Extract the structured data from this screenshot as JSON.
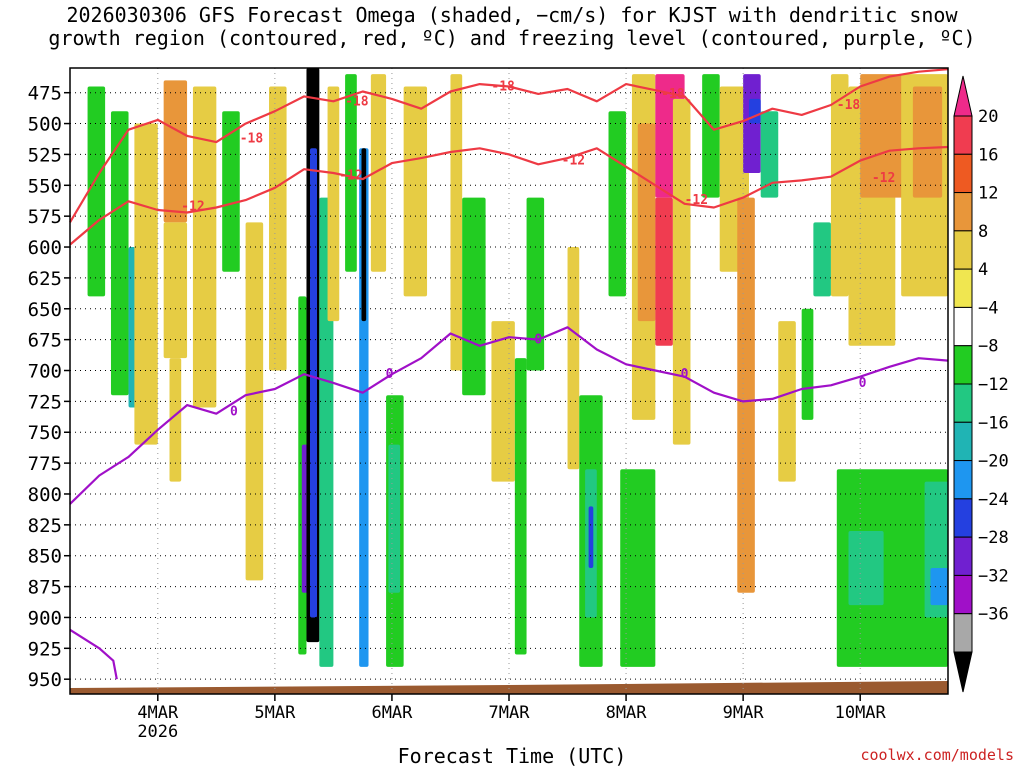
{
  "header": {
    "title_line1": "2026030306 GFS Forecast Omega (shaded, −cm/s) for KJST with dendritic snow",
    "title_line2": "growth region (contoured, red, ºC) and freezing level (contoured, purple, ºC)"
  },
  "footer": {
    "xlabel": "Forecast Time (UTC)",
    "credit": "coolwx.com/models"
  },
  "chart_data": {
    "type": "heatmap",
    "x_unit": "forecast time (UTC), March 2026",
    "xlim_day": [
      3.25,
      10.75
    ],
    "x_ticks": [
      {
        "day": 4,
        "label": "4MAR",
        "sublabel": "2026"
      },
      {
        "day": 5,
        "label": "5MAR"
      },
      {
        "day": 6,
        "label": "6MAR"
      },
      {
        "day": 7,
        "label": "7MAR"
      },
      {
        "day": 8,
        "label": "8MAR"
      },
      {
        "day": 9,
        "label": "9MAR"
      },
      {
        "day": 10,
        "label": "10MAR"
      }
    ],
    "y_unit": "pressure (hPa)",
    "ylim": [
      962,
      455
    ],
    "y_ticks": [
      475,
      500,
      525,
      550,
      575,
      600,
      625,
      650,
      675,
      700,
      725,
      750,
      775,
      800,
      825,
      850,
      875,
      900,
      925,
      950
    ],
    "grid": "dotted",
    "colorbar": {
      "labels": [
        "20",
        "16",
        "12",
        "8",
        "4",
        "−4",
        "−8",
        "−12",
        "−16",
        "−20",
        "−24",
        "−28",
        "−32",
        "−36"
      ],
      "bins": [
        {
          "range": "16 to 20",
          "color": "#f03c50"
        },
        {
          "range": "12 to 16",
          "color": "#ee5a22"
        },
        {
          "range": "8 to 12",
          "color": "#e8963a"
        },
        {
          "range": "4 to 8",
          "color": "#e6cc44"
        },
        {
          "range": "0 to 4",
          "color": "#f0e650"
        },
        {
          "range": "-4 to 0",
          "color": "#ffffff"
        },
        {
          "range": "-8 to -4",
          "color": "#22cc22"
        },
        {
          "range": "-12 to -8",
          "color": "#22c882"
        },
        {
          "range": "-16 to -12",
          "color": "#20b4b4"
        },
        {
          "range": "-20 to -16",
          "color": "#1e96f0"
        },
        {
          "range": "-24 to -20",
          "color": "#2440e0"
        },
        {
          "range": "-28 to -24",
          "color": "#7020d0"
        },
        {
          "range": "-32 to -28",
          "color": "#a010c8"
        },
        {
          "range": "-36 to -32",
          "color": "#a8a8a8"
        }
      ],
      "top_arrow_color": "#ee2a8a",
      "bottom_arrow_color": "#000000"
    },
    "terrain_color": "#9a5a30",
    "omega_features": [
      {
        "day": [
          3.4,
          3.55
        ],
        "p": [
          470,
          640
        ],
        "color": "#22cc22"
      },
      {
        "day": [
          3.6,
          3.75
        ],
        "p": [
          490,
          720
        ],
        "color": "#22cc22"
      },
      {
        "day": [
          3.75,
          3.85
        ],
        "p": [
          600,
          730
        ],
        "color": "#20b4b4"
      },
      {
        "day": [
          3.8,
          4.0
        ],
        "p": [
          500,
          760
        ],
        "color": "#e6cc44"
      },
      {
        "day": [
          4.05,
          4.25
        ],
        "p": [
          465,
          580
        ],
        "color": "#e8963a"
      },
      {
        "day": [
          4.05,
          4.25
        ],
        "p": [
          580,
          690
        ],
        "color": "#e6cc44"
      },
      {
        "day": [
          4.1,
          4.2
        ],
        "p": [
          690,
          790
        ],
        "color": "#e6cc44"
      },
      {
        "day": [
          4.3,
          4.5
        ],
        "p": [
          470,
          730
        ],
        "color": "#e6cc44"
      },
      {
        "day": [
          4.55,
          4.7
        ],
        "p": [
          490,
          620
        ],
        "color": "#22cc22"
      },
      {
        "day": [
          4.75,
          4.9
        ],
        "p": [
          580,
          870
        ],
        "color": "#e6cc44"
      },
      {
        "day": [
          4.95,
          5.1
        ],
        "p": [
          470,
          700
        ],
        "color": "#e6cc44"
      },
      {
        "day": [
          5.2,
          5.27
        ],
        "p": [
          640,
          930
        ],
        "color": "#22cc22"
      },
      {
        "day": [
          5.23,
          5.28
        ],
        "p": [
          760,
          880
        ],
        "color": "#7020d0"
      },
      {
        "day": [
          5.27,
          5.38
        ],
        "p": [
          455,
          920
        ],
        "color": "#000000"
      },
      {
        "day": [
          5.3,
          5.36
        ],
        "p": [
          520,
          900
        ],
        "color": "#2440e0"
      },
      {
        "day": [
          5.38,
          5.5
        ],
        "p": [
          560,
          940
        ],
        "color": "#22c882"
      },
      {
        "day": [
          5.45,
          5.55
        ],
        "p": [
          470,
          660
        ],
        "color": "#e6cc44"
      },
      {
        "day": [
          5.6,
          5.7
        ],
        "p": [
          460,
          620
        ],
        "color": "#22cc22"
      },
      {
        "day": [
          5.72,
          5.8
        ],
        "p": [
          520,
          940
        ],
        "color": "#1e96f0"
      },
      {
        "day": [
          5.74,
          5.78
        ],
        "p": [
          520,
          660
        ],
        "color": "#000000"
      },
      {
        "day": [
          5.82,
          5.95
        ],
        "p": [
          460,
          620
        ],
        "color": "#e6cc44"
      },
      {
        "day": [
          5.95,
          6.1
        ],
        "p": [
          720,
          940
        ],
        "color": "#22cc22"
      },
      {
        "day": [
          5.97,
          6.07
        ],
        "p": [
          760,
          880
        ],
        "color": "#22c882"
      },
      {
        "day": [
          6.1,
          6.3
        ],
        "p": [
          470,
          640
        ],
        "color": "#e6cc44"
      },
      {
        "day": [
          6.5,
          6.6
        ],
        "p": [
          460,
          700
        ],
        "color": "#e6cc44"
      },
      {
        "day": [
          6.6,
          6.8
        ],
        "p": [
          560,
          720
        ],
        "color": "#22cc22"
      },
      {
        "day": [
          6.85,
          7.05
        ],
        "p": [
          660,
          790
        ],
        "color": "#e6cc44"
      },
      {
        "day": [
          7.05,
          7.15
        ],
        "p": [
          690,
          930
        ],
        "color": "#22cc22"
      },
      {
        "day": [
          7.15,
          7.3
        ],
        "p": [
          560,
          700
        ],
        "color": "#22cc22"
      },
      {
        "day": [
          7.5,
          7.6
        ],
        "p": [
          600,
          780
        ],
        "color": "#e6cc44"
      },
      {
        "day": [
          7.6,
          7.8
        ],
        "p": [
          720,
          940
        ],
        "color": "#22cc22"
      },
      {
        "day": [
          7.65,
          7.75
        ],
        "p": [
          780,
          900
        ],
        "color": "#22c882"
      },
      {
        "day": [
          7.68,
          7.72
        ],
        "p": [
          810,
          860
        ],
        "color": "#2440e0"
      },
      {
        "day": [
          7.85,
          8.0
        ],
        "p": [
          490,
          640
        ],
        "color": "#22cc22"
      },
      {
        "day": [
          7.95,
          8.25
        ],
        "p": [
          780,
          940
        ],
        "color": "#22cc22"
      },
      {
        "day": [
          8.05,
          8.25
        ],
        "p": [
          460,
          740
        ],
        "color": "#e6cc44"
      },
      {
        "day": [
          8.1,
          8.25
        ],
        "p": [
          500,
          660
        ],
        "color": "#e8963a"
      },
      {
        "day": [
          8.25,
          8.5
        ],
        "p": [
          460,
          560
        ],
        "color": "#ee2a8a"
      },
      {
        "day": [
          8.25,
          8.4
        ],
        "p": [
          560,
          680
        ],
        "color": "#f03c50"
      },
      {
        "day": [
          8.4,
          8.55
        ],
        "p": [
          480,
          760
        ],
        "color": "#e6cc44"
      },
      {
        "day": [
          8.65,
          8.8
        ],
        "p": [
          460,
          560
        ],
        "color": "#22cc22"
      },
      {
        "day": [
          8.8,
          9.05
        ],
        "p": [
          470,
          620
        ],
        "color": "#e6cc44"
      },
      {
        "day": [
          9.0,
          9.15
        ],
        "p": [
          460,
          540
        ],
        "color": "#7020d0"
      },
      {
        "day": [
          9.05,
          9.15
        ],
        "p": [
          480,
          500
        ],
        "color": "#2440e0"
      },
      {
        "day": [
          9.15,
          9.3
        ],
        "p": [
          490,
          560
        ],
        "color": "#22c882"
      },
      {
        "day": [
          8.95,
          9.1
        ],
        "p": [
          560,
          880
        ],
        "color": "#e8963a"
      },
      {
        "day": [
          9.3,
          9.45
        ],
        "p": [
          660,
          790
        ],
        "color": "#e6cc44"
      },
      {
        "day": [
          9.5,
          9.6
        ],
        "p": [
          650,
          740
        ],
        "color": "#22cc22"
      },
      {
        "day": [
          9.6,
          9.75
        ],
        "p": [
          580,
          640
        ],
        "color": "#22c882"
      },
      {
        "day": [
          9.75,
          9.9
        ],
        "p": [
          460,
          640
        ],
        "color": "#e6cc44"
      },
      {
        "day": [
          9.9,
          10.3
        ],
        "p": [
          470,
          680
        ],
        "color": "#e6cc44"
      },
      {
        "day": [
          10.0,
          10.4
        ],
        "p": [
          460,
          560
        ],
        "color": "#e8963a"
      },
      {
        "day": [
          10.35,
          10.75
        ],
        "p": [
          460,
          640
        ],
        "color": "#e6cc44"
      },
      {
        "day": [
          10.45,
          10.7
        ],
        "p": [
          470,
          560
        ],
        "color": "#e8963a"
      },
      {
        "day": [
          9.8,
          10.75
        ],
        "p": [
          780,
          940
        ],
        "color": "#22cc22"
      },
      {
        "day": [
          9.9,
          10.2
        ],
        "p": [
          830,
          890
        ],
        "color": "#22c882"
      },
      {
        "day": [
          10.55,
          10.75
        ],
        "p": [
          790,
          900
        ],
        "color": "#22c882"
      },
      {
        "day": [
          10.6,
          10.75
        ],
        "p": [
          860,
          890
        ],
        "color": "#1e96f0"
      }
    ],
    "dgz_contours": [
      {
        "level": -18,
        "color": "#ee3a44",
        "points": [
          [
            3.25,
            580
          ],
          [
            3.5,
            540
          ],
          [
            3.75,
            505
          ],
          [
            4.0,
            497
          ],
          [
            4.25,
            510
          ],
          [
            4.5,
            515
          ],
          [
            4.75,
            500
          ],
          [
            5.0,
            490
          ],
          [
            5.25,
            478
          ],
          [
            5.5,
            482
          ],
          [
            5.75,
            474
          ],
          [
            6.0,
            480
          ],
          [
            6.25,
            488
          ],
          [
            6.5,
            474
          ],
          [
            6.75,
            468
          ],
          [
            7.0,
            470
          ],
          [
            7.25,
            476
          ],
          [
            7.5,
            472
          ],
          [
            7.75,
            482
          ],
          [
            8.0,
            468
          ],
          [
            8.25,
            473
          ],
          [
            8.5,
            478
          ],
          [
            8.75,
            505
          ],
          [
            9.0,
            498
          ],
          [
            9.25,
            488
          ],
          [
            9.5,
            493
          ],
          [
            9.75,
            485
          ],
          [
            10.0,
            470
          ],
          [
            10.25,
            462
          ],
          [
            10.5,
            458
          ],
          [
            10.75,
            456
          ]
        ]
      },
      {
        "level": -12,
        "color": "#ee3a44",
        "points": [
          [
            3.25,
            598
          ],
          [
            3.5,
            578
          ],
          [
            3.75,
            563
          ],
          [
            4.0,
            570
          ],
          [
            4.25,
            572
          ],
          [
            4.5,
            568
          ],
          [
            4.75,
            562
          ],
          [
            5.0,
            552
          ],
          [
            5.25,
            537
          ],
          [
            5.5,
            540
          ],
          [
            5.75,
            545
          ],
          [
            6.0,
            532
          ],
          [
            6.25,
            528
          ],
          [
            6.5,
            523
          ],
          [
            6.75,
            520
          ],
          [
            7.0,
            525
          ],
          [
            7.25,
            533
          ],
          [
            7.5,
            528
          ],
          [
            7.75,
            520
          ],
          [
            8.0,
            535
          ],
          [
            8.25,
            550
          ],
          [
            8.5,
            565
          ],
          [
            8.75,
            568
          ],
          [
            9.0,
            560
          ],
          [
            9.25,
            548
          ],
          [
            9.5,
            546
          ],
          [
            9.75,
            543
          ],
          [
            10.0,
            530
          ],
          [
            10.25,
            522
          ],
          [
            10.5,
            520
          ],
          [
            10.75,
            519
          ]
        ]
      },
      {
        "level": 0,
        "color": "#a010c8",
        "points": [
          [
            3.25,
            808
          ],
          [
            3.5,
            785
          ],
          [
            3.75,
            770
          ],
          [
            4.0,
            748
          ],
          [
            4.25,
            728
          ],
          [
            4.5,
            735
          ],
          [
            4.75,
            720
          ],
          [
            5.0,
            715
          ],
          [
            5.25,
            703
          ],
          [
            5.5,
            710
          ],
          [
            5.75,
            718
          ],
          [
            6.0,
            703
          ],
          [
            6.25,
            690
          ],
          [
            6.5,
            670
          ],
          [
            6.75,
            680
          ],
          [
            7.0,
            673
          ],
          [
            7.25,
            675
          ],
          [
            7.5,
            665
          ],
          [
            7.75,
            683
          ],
          [
            8.0,
            695
          ],
          [
            8.25,
            700
          ],
          [
            8.5,
            705
          ],
          [
            8.75,
            718
          ],
          [
            9.0,
            725
          ],
          [
            9.25,
            723
          ],
          [
            9.5,
            715
          ],
          [
            9.75,
            712
          ],
          [
            10.0,
            705
          ],
          [
            10.25,
            697
          ],
          [
            10.5,
            690
          ],
          [
            10.75,
            692
          ]
        ]
      },
      {
        "level": 0,
        "color": "#a010c8",
        "points": [
          [
            3.25,
            910
          ],
          [
            3.5,
            925
          ],
          [
            3.62,
            935
          ],
          [
            3.65,
            950
          ]
        ]
      }
    ],
    "contour_labels": [
      {
        "text": "-18",
        "day": 5.7,
        "p": 482,
        "color": "#ee3a44"
      },
      {
        "text": "-18",
        "day": 4.8,
        "p": 512,
        "color": "#ee3a44"
      },
      {
        "text": "-18",
        "day": 6.95,
        "p": 470,
        "color": "#ee3a44"
      },
      {
        "text": "-18",
        "day": 8.4,
        "p": 476,
        "color": "#ee3a44"
      },
      {
        "text": "-18",
        "day": 9.9,
        "p": 485,
        "color": "#ee3a44"
      },
      {
        "text": "-12",
        "day": 4.3,
        "p": 567,
        "color": "#ee3a44"
      },
      {
        "text": "-12",
        "day": 5.65,
        "p": 542,
        "color": "#ee3a44"
      },
      {
        "text": "-12",
        "day": 7.55,
        "p": 530,
        "color": "#ee3a44"
      },
      {
        "text": "-12",
        "day": 8.6,
        "p": 562,
        "color": "#ee3a44"
      },
      {
        "text": "-12",
        "day": 10.2,
        "p": 544,
        "color": "#ee3a44"
      },
      {
        "text": "0",
        "day": 4.65,
        "p": 733,
        "color": "#a010c8"
      },
      {
        "text": "0",
        "day": 5.98,
        "p": 703,
        "color": "#a010c8"
      },
      {
        "text": "0",
        "day": 7.25,
        "p": 675,
        "color": "#a010c8"
      },
      {
        "text": "0",
        "day": 8.5,
        "p": 703,
        "color": "#a010c8"
      },
      {
        "text": "0",
        "day": 10.02,
        "p": 710,
        "color": "#a010c8"
      }
    ]
  }
}
